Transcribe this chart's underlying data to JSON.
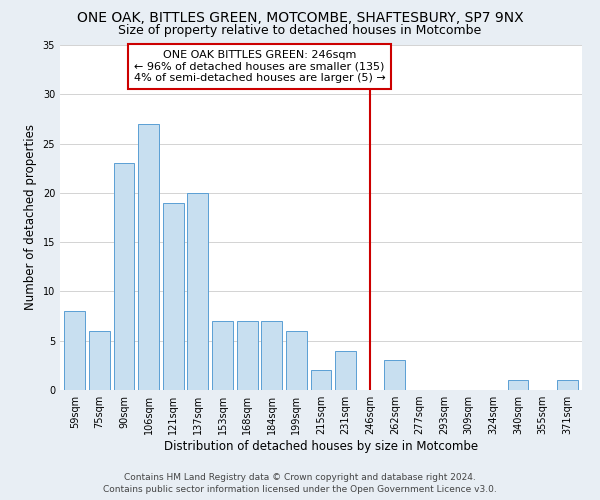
{
  "title": "ONE OAK, BITTLES GREEN, MOTCOMBE, SHAFTESBURY, SP7 9NX",
  "subtitle": "Size of property relative to detached houses in Motcombe",
  "xlabel": "Distribution of detached houses by size in Motcombe",
  "ylabel": "Number of detached properties",
  "bar_labels": [
    "59sqm",
    "75sqm",
    "90sqm",
    "106sqm",
    "121sqm",
    "137sqm",
    "153sqm",
    "168sqm",
    "184sqm",
    "199sqm",
    "215sqm",
    "231sqm",
    "246sqm",
    "262sqm",
    "277sqm",
    "293sqm",
    "309sqm",
    "324sqm",
    "340sqm",
    "355sqm",
    "371sqm"
  ],
  "bar_values": [
    8,
    6,
    23,
    27,
    19,
    20,
    7,
    7,
    7,
    6,
    2,
    4,
    0,
    3,
    0,
    0,
    0,
    0,
    1,
    0,
    1
  ],
  "bar_color": "#c8dff0",
  "bar_edge_color": "#5a9fd4",
  "highlight_index": 12,
  "highlight_line_color": "#cc0000",
  "annotation_title": "ONE OAK BITTLES GREEN: 246sqm",
  "annotation_line1": "← 96% of detached houses are smaller (135)",
  "annotation_line2": "4% of semi-detached houses are larger (5) →",
  "annotation_box_color": "#ffffff",
  "annotation_border_color": "#cc0000",
  "ylim": [
    0,
    35
  ],
  "yticks": [
    0,
    5,
    10,
    15,
    20,
    25,
    30,
    35
  ],
  "footer_line1": "Contains HM Land Registry data © Crown copyright and database right 2024.",
  "footer_line2": "Contains public sector information licensed under the Open Government Licence v3.0.",
  "bg_color": "#e8eef4",
  "plot_bg_color": "#ffffff",
  "title_fontsize": 10,
  "subtitle_fontsize": 9,
  "axis_label_fontsize": 8.5,
  "tick_fontsize": 7,
  "annotation_fontsize": 8,
  "footer_fontsize": 6.5
}
